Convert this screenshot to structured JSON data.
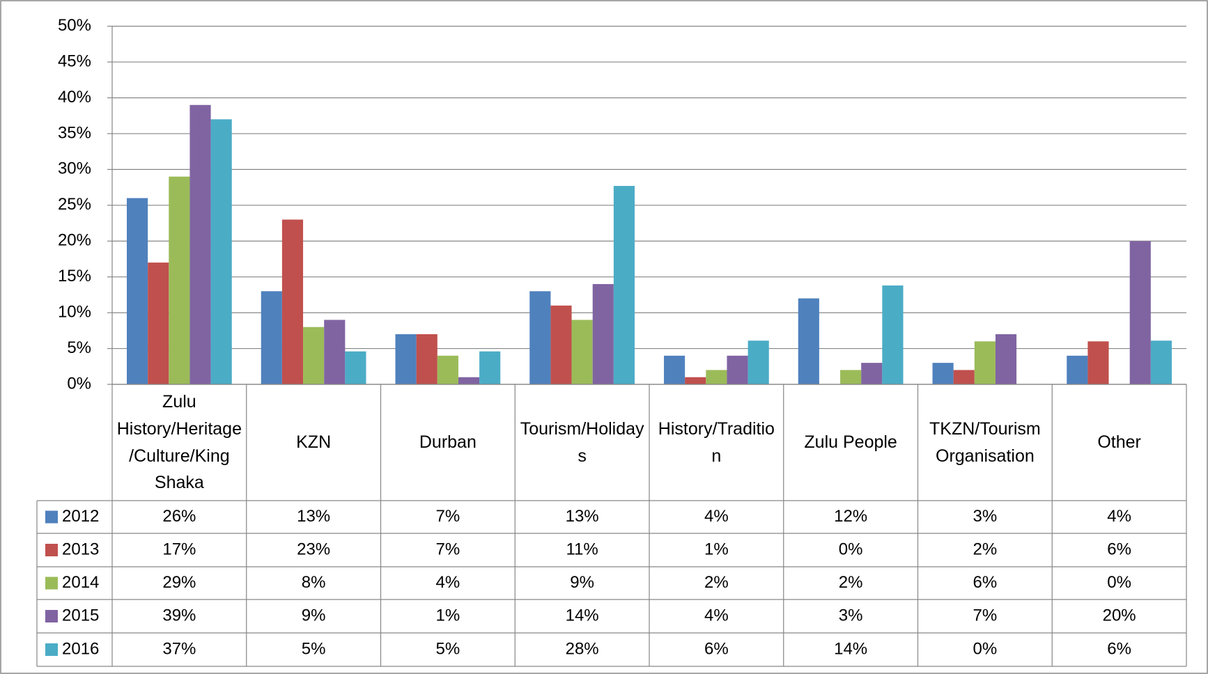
{
  "chart_data": {
    "type": "bar",
    "categories": [
      "Zulu History/Heritage/Culture/King Shaka",
      "KZN",
      "Durban",
      "Tourism/Holidays",
      "History/Tradition",
      "Zulu People",
      "TKZN/Tourism Organisation",
      "Other"
    ],
    "series": [
      {
        "name": "2012",
        "color": "#4f81bd",
        "values": [
          26,
          13,
          7,
          13,
          4,
          12,
          3,
          4
        ],
        "value_labels": [
          "26%",
          "13%",
          "7%",
          "13%",
          "4%",
          "12%",
          "3%",
          "4%"
        ]
      },
      {
        "name": "2013",
        "color": "#c0504d",
        "values": [
          17,
          23,
          7,
          11,
          1,
          0,
          2,
          6
        ],
        "value_labels": [
          "17%",
          "23%",
          "7%",
          "11%",
          "1%",
          "0%",
          "2%",
          "6%"
        ]
      },
      {
        "name": "2014",
        "color": "#9bbb59",
        "values": [
          29,
          8,
          4,
          9,
          2,
          2,
          6,
          0
        ],
        "value_labels": [
          "29%",
          "8%",
          "4%",
          "9%",
          "2%",
          "2%",
          "6%",
          "0%"
        ]
      },
      {
        "name": "2015",
        "color": "#8064a2",
        "values": [
          39,
          9,
          1,
          14,
          4,
          3,
          7,
          20
        ],
        "value_labels": [
          "39%",
          "9%",
          "1%",
          "14%",
          "4%",
          "3%",
          "7%",
          "20%"
        ]
      },
      {
        "name": "2016",
        "color": "#4bacc6",
        "values": [
          37,
          4.6,
          4.6,
          27.7,
          6.1,
          13.8,
          0,
          6.1
        ],
        "value_labels": [
          "37%",
          "5%",
          "5%",
          "28%",
          "6%",
          "14%",
          "0%",
          "6%"
        ]
      }
    ],
    "ylim": [
      0,
      50
    ],
    "yticks": [
      {
        "value": 0,
        "label": "0%"
      },
      {
        "value": 5,
        "label": "5%"
      },
      {
        "value": 10,
        "label": "10%"
      },
      {
        "value": 15,
        "label": "15%"
      },
      {
        "value": 20,
        "label": "20%"
      },
      {
        "value": 25,
        "label": "25%"
      },
      {
        "value": 30,
        "label": "30%"
      },
      {
        "value": 35,
        "label": "35%"
      },
      {
        "value": 40,
        "label": "40%"
      },
      {
        "value": 45,
        "label": "45%"
      },
      {
        "value": 50,
        "label": "50%"
      }
    ],
    "grid": true
  }
}
